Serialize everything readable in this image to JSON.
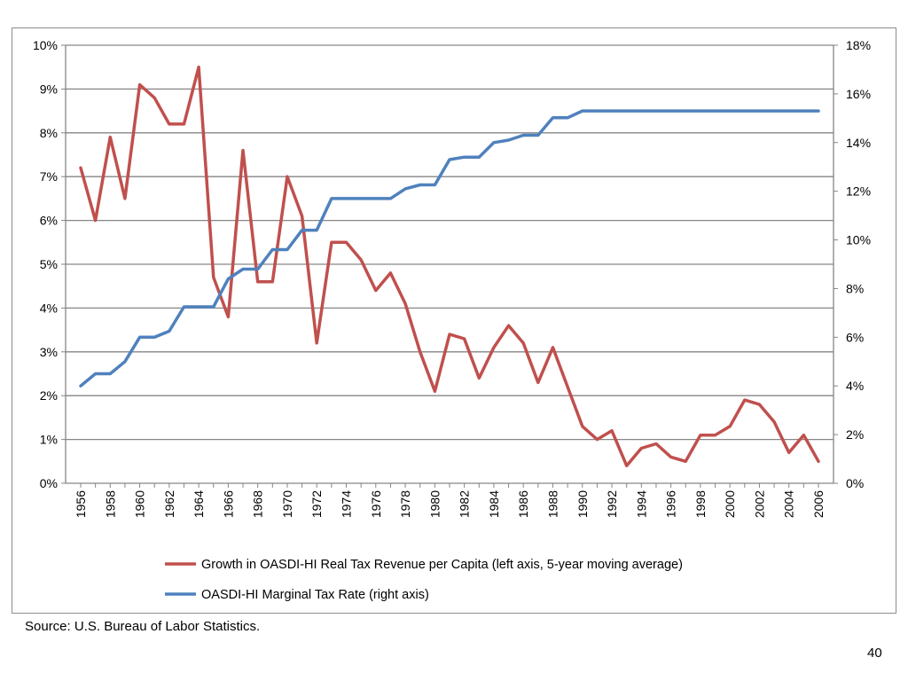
{
  "source_note": "Source: U.S. Bureau of Labor Statistics.",
  "slide_number": "40",
  "chart_data": {
    "type": "line",
    "x": [
      1956,
      1957,
      1958,
      1959,
      1960,
      1961,
      1962,
      1963,
      1964,
      1965,
      1966,
      1967,
      1968,
      1969,
      1970,
      1971,
      1972,
      1973,
      1974,
      1975,
      1976,
      1977,
      1978,
      1979,
      1980,
      1981,
      1982,
      1983,
      1984,
      1985,
      1986,
      1987,
      1988,
      1989,
      1990,
      1991,
      1992,
      1993,
      1994,
      1995,
      1996,
      1997,
      1998,
      1999,
      2000,
      2001,
      2002,
      2003,
      2004,
      2005,
      2006
    ],
    "x_tick_labels": [
      "1956",
      "1958",
      "1960",
      "1962",
      "1964",
      "1966",
      "1968",
      "1970",
      "1972",
      "1974",
      "1976",
      "1978",
      "1980",
      "1982",
      "1984",
      "1986",
      "1988",
      "1990",
      "1992",
      "1994",
      "1996",
      "1998",
      "2000",
      "2002",
      "2004",
      "2006"
    ],
    "left_axis": {
      "ylim": [
        0,
        10
      ],
      "ticks": [
        "0%",
        "1%",
        "2%",
        "3%",
        "4%",
        "5%",
        "6%",
        "7%",
        "8%",
        "9%",
        "10%"
      ]
    },
    "right_axis": {
      "ylim": [
        0,
        18
      ],
      "ticks": [
        "0%",
        "2%",
        "4%",
        "6%",
        "8%",
        "10%",
        "12%",
        "14%",
        "16%",
        "18%"
      ]
    },
    "grid": "horizontal",
    "legend_position": "bottom",
    "series": [
      {
        "name": "Growth in OASDI-HI Real Tax Revenue per Capita (left axis, 5-year moving average)",
        "axis": "left",
        "color": "#c0504d",
        "values": [
          7.2,
          6.0,
          7.9,
          6.5,
          9.1,
          8.8,
          8.2,
          8.2,
          9.5,
          4.7,
          3.8,
          7.6,
          4.6,
          4.6,
          7.0,
          6.1,
          3.2,
          5.5,
          5.5,
          5.1,
          4.4,
          4.8,
          4.1,
          3.0,
          2.1,
          3.4,
          3.3,
          2.4,
          3.1,
          3.6,
          3.2,
          2.3,
          3.1,
          2.2,
          1.3,
          1.0,
          1.2,
          0.4,
          0.8,
          0.9,
          0.6,
          0.5,
          1.1,
          1.1,
          1.3,
          1.9,
          1.8,
          1.4,
          0.7,
          1.1,
          0.5
        ]
      },
      {
        "name": "OASDI-HI Marginal Tax Rate (right axis)",
        "axis": "right",
        "color": "#4f81bd",
        "values": [
          4.0,
          4.5,
          4.5,
          5.0,
          6.0,
          6.0,
          6.25,
          7.25,
          7.25,
          7.25,
          8.4,
          8.8,
          8.8,
          9.6,
          9.6,
          10.4,
          10.4,
          11.7,
          11.7,
          11.7,
          11.7,
          11.7,
          12.1,
          12.26,
          12.26,
          13.3,
          13.4,
          13.4,
          14.0,
          14.1,
          14.3,
          14.3,
          15.02,
          15.02,
          15.3,
          15.3,
          15.3,
          15.3,
          15.3,
          15.3,
          15.3,
          15.3,
          15.3,
          15.3,
          15.3,
          15.3,
          15.3,
          15.3,
          15.3,
          15.3,
          15.3
        ]
      }
    ]
  }
}
